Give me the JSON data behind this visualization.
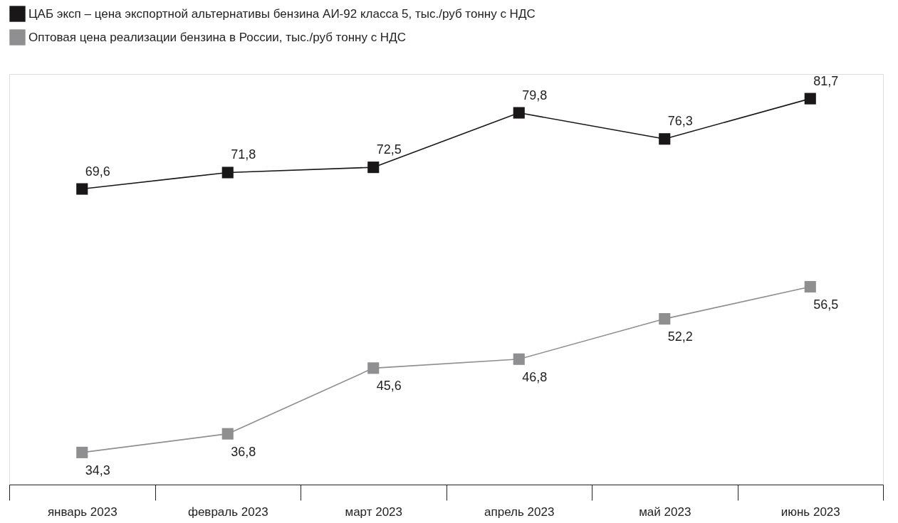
{
  "chart_data": {
    "type": "line",
    "categories": [
      "январь 2023",
      "февраль 2023",
      "март 2023",
      "апрель 2023",
      "май 2023",
      "июнь 2023"
    ],
    "series": [
      {
        "name": "ЦАБ эксп – цена экспортной альтернативы бензина АИ-92 класса 5, тыс./руб тонну с НДС",
        "color": "#1a1718",
        "values": [
          69.6,
          71.8,
          72.5,
          79.8,
          76.3,
          81.7
        ],
        "value_labels": [
          "69,6",
          "71,8",
          "72,5",
          "79,8",
          "76,3",
          "81,7"
        ]
      },
      {
        "name": "Оптовая цена реализации бензина в России, тыс./руб тонну с НДС",
        "color": "#8f8e90",
        "values": [
          34.3,
          36.8,
          45.6,
          46.8,
          52.2,
          56.5
        ],
        "value_labels": [
          "34,3",
          "36,8",
          "45,6",
          "46,8",
          "52,2",
          "56,5"
        ]
      }
    ],
    "legend": "top left",
    "marker": "square",
    "line_style": "solid",
    "grid": false
  }
}
